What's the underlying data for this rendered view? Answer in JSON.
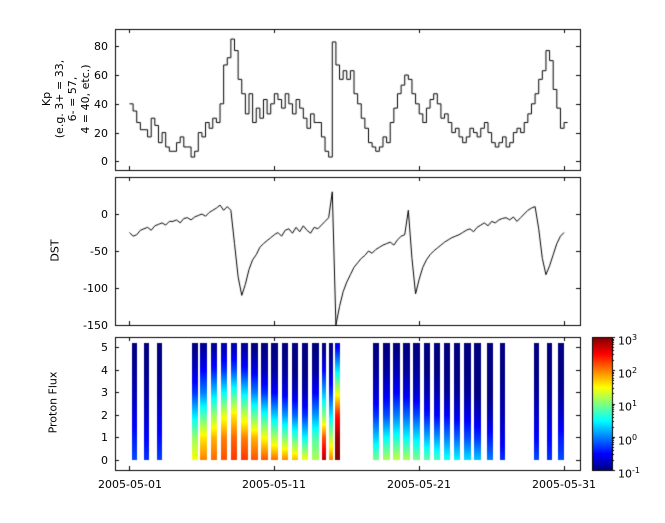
{
  "figure": {
    "background": "#ffffff",
    "frame_color": "#000000"
  },
  "x_axis": {
    "xlim": [
      -1.0,
      31.1
    ],
    "ticks": [
      {
        "day": 0,
        "label": "2005-05-01"
      },
      {
        "day": 10,
        "label": "2005-05-11"
      },
      {
        "day": 20,
        "label": "2005-05-21"
      },
      {
        "day": 30,
        "label": "2005-05-31"
      }
    ]
  },
  "chart_data": [
    {
      "type": "line",
      "name": "kp-index",
      "ylabel_lines": [
        "Kp",
        "(e.g. 3+ = 33,",
        "6- = 57,",
        "4 = 40, etc.)"
      ],
      "ylim": [
        -6,
        92
      ],
      "yticks": [
        0,
        20,
        40,
        60,
        80
      ],
      "line_color": "#000000",
      "step": true,
      "x_start_day": 0,
      "x_step_days": 0.25,
      "values": [
        40,
        35,
        27,
        22,
        22,
        17,
        30,
        25,
        13,
        20,
        10,
        7,
        7,
        13,
        17,
        10,
        10,
        3,
        7,
        20,
        17,
        27,
        23,
        30,
        27,
        40,
        67,
        72,
        85,
        77,
        57,
        47,
        33,
        47,
        27,
        37,
        30,
        43,
        33,
        40,
        47,
        43,
        37,
        47,
        40,
        33,
        43,
        37,
        30,
        23,
        33,
        27,
        27,
        17,
        7,
        3,
        83,
        67,
        57,
        63,
        57,
        63,
        47,
        40,
        30,
        23,
        13,
        10,
        7,
        10,
        17,
        13,
        27,
        37,
        47,
        53,
        60,
        57,
        47,
        40,
        33,
        27,
        37,
        43,
        47,
        40,
        30,
        33,
        27,
        20,
        23,
        17,
        13,
        17,
        23,
        20,
        17,
        23,
        27,
        20,
        13,
        10,
        13,
        17,
        10,
        13,
        20,
        23,
        20,
        27,
        33,
        40,
        47,
        57,
        63,
        77,
        70,
        50,
        37,
        23,
        27
      ]
    },
    {
      "type": "line",
      "name": "dst-index",
      "ylabel": "DST",
      "ylim": [
        -150,
        50
      ],
      "yticks": [
        -150,
        -100,
        -50,
        0
      ],
      "line_color": "#000000",
      "step": false,
      "x_start_day": 0,
      "x_step_days": 0.25,
      "values": [
        -25,
        -30,
        -28,
        -22,
        -20,
        -18,
        -22,
        -16,
        -14,
        -12,
        -15,
        -10,
        -10,
        -8,
        -12,
        -6,
        -5,
        -8,
        -4,
        -2,
        0,
        -3,
        2,
        5,
        8,
        12,
        5,
        10,
        5,
        -40,
        -85,
        -110,
        -95,
        -75,
        -62,
        -55,
        -45,
        -40,
        -36,
        -32,
        -28,
        -25,
        -30,
        -22,
        -20,
        -26,
        -18,
        -24,
        -16,
        -22,
        -26,
        -18,
        -20,
        -15,
        -10,
        -5,
        30,
        -150,
        -125,
        -105,
        -92,
        -82,
        -72,
        -66,
        -60,
        -56,
        -50,
        -53,
        -48,
        -45,
        -42,
        -40,
        -38,
        -42,
        -35,
        -30,
        -28,
        5,
        -60,
        -108,
        -88,
        -72,
        -62,
        -55,
        -50,
        -46,
        -42,
        -38,
        -35,
        -32,
        -30,
        -28,
        -25,
        -22,
        -20,
        -24,
        -18,
        -15,
        -12,
        -16,
        -10,
        -12,
        -8,
        -6,
        -5,
        -8,
        -4,
        -10,
        -5,
        0,
        5,
        8,
        10,
        -20,
        -60,
        -82,
        -70,
        -55,
        -40,
        -30,
        -25
      ]
    },
    {
      "type": "heatmap",
      "name": "proton-flux",
      "ylabel": "Proton Flux",
      "ylim": [
        -0.45,
        5.45
      ],
      "yticks": [
        0,
        1,
        2,
        3,
        4,
        5
      ],
      "bar_y_span": [
        0,
        5.2
      ],
      "colormap": "jet",
      "log_value_range": [
        -1,
        3
      ],
      "columns": [
        {
          "x": 0.2,
          "w": 0.35,
          "v": [
            -0.2,
            -0.4,
            -0.6,
            -0.8,
            -0.9,
            -1
          ]
        },
        {
          "x": 1.0,
          "w": 0.35,
          "v": [
            -0.3,
            -0.5,
            -0.7,
            -0.85,
            -0.95,
            -1
          ]
        },
        {
          "x": 1.9,
          "w": 0.35,
          "v": [
            -0.25,
            -0.45,
            -0.65,
            -0.85,
            -0.95,
            -1
          ]
        },
        {
          "x": 4.3,
          "w": 0.4,
          "v": [
            1.5,
            1.1,
            0.4,
            -0.3,
            -0.7,
            -1
          ]
        },
        {
          "x": 4.9,
          "w": 0.45,
          "v": [
            2.0,
            1.6,
            0.8,
            0.0,
            -0.5,
            -0.9
          ]
        },
        {
          "x": 5.6,
          "w": 0.45,
          "v": [
            2.1,
            1.8,
            1.1,
            0.3,
            -0.4,
            -0.9
          ]
        },
        {
          "x": 6.3,
          "w": 0.45,
          "v": [
            2.2,
            2.0,
            1.4,
            0.5,
            -0.3,
            -0.8
          ]
        },
        {
          "x": 7.0,
          "w": 0.45,
          "v": [
            2.3,
            2.1,
            1.6,
            0.7,
            -0.2,
            -0.8
          ]
        },
        {
          "x": 7.7,
          "w": 0.45,
          "v": [
            2.3,
            2.0,
            1.3,
            0.4,
            -0.4,
            -0.9
          ]
        },
        {
          "x": 8.4,
          "w": 0.45,
          "v": [
            2.2,
            1.8,
            0.9,
            0.0,
            -0.6,
            -1
          ]
        },
        {
          "x": 9.1,
          "w": 0.45,
          "v": [
            2.2,
            1.5,
            0.6,
            -0.3,
            -0.8,
            -1
          ]
        },
        {
          "x": 9.8,
          "w": 0.45,
          "v": [
            2.1,
            1.2,
            0.3,
            -0.5,
            -0.9,
            -1
          ]
        },
        {
          "x": 10.5,
          "w": 0.45,
          "v": [
            2.0,
            1.0,
            0.1,
            -0.6,
            -0.9,
            -1
          ]
        },
        {
          "x": 11.2,
          "w": 0.45,
          "v": [
            1.8,
            0.8,
            -0.1,
            -0.7,
            -1,
            -1
          ]
        },
        {
          "x": 11.9,
          "w": 0.45,
          "v": [
            1.5,
            0.5,
            -0.3,
            -0.8,
            -1,
            -1
          ]
        },
        {
          "x": 12.6,
          "w": 0.45,
          "v": [
            1.2,
            0.8,
            0.1,
            -0.5,
            -0.9,
            -1
          ]
        },
        {
          "x": 13.3,
          "w": 0.3,
          "v": [
            2.8,
            2.2,
            1.0,
            0.2,
            -0.5,
            -1
          ]
        },
        {
          "x": 13.8,
          "w": 0.25,
          "v": [
            2.0,
            1.2,
            0.4,
            -0.3,
            -0.8,
            -1
          ]
        },
        {
          "x": 14.2,
          "w": 0.3,
          "v": [
            3.0,
            2.9,
            2.4,
            1.4,
            0.4,
            -0.5
          ]
        },
        {
          "x": 16.8,
          "w": 0.45,
          "v": [
            1.0,
            0.3,
            -0.3,
            -0.7,
            -0.9,
            -1
          ]
        },
        {
          "x": 17.5,
          "w": 0.45,
          "v": [
            1.2,
            0.5,
            -0.2,
            -0.6,
            -0.9,
            -1
          ]
        },
        {
          "x": 18.2,
          "w": 0.45,
          "v": [
            1.3,
            0.6,
            0.0,
            -0.5,
            -0.8,
            -1
          ]
        },
        {
          "x": 18.9,
          "w": 0.45,
          "v": [
            1.2,
            0.5,
            -0.1,
            -0.6,
            -0.9,
            -1
          ]
        },
        {
          "x": 19.6,
          "w": 0.45,
          "v": [
            1.0,
            0.4,
            -0.2,
            -0.7,
            -0.9,
            -1
          ]
        },
        {
          "x": 20.3,
          "w": 0.45,
          "v": [
            0.9,
            0.2,
            -0.4,
            -0.8,
            -1,
            -1
          ]
        },
        {
          "x": 21.0,
          "w": 0.45,
          "v": [
            0.8,
            0.1,
            -0.5,
            -0.8,
            -1,
            -1
          ]
        },
        {
          "x": 21.7,
          "w": 0.45,
          "v": [
            0.6,
            0.0,
            -0.5,
            -0.9,
            -1,
            -1
          ]
        },
        {
          "x": 22.4,
          "w": 0.45,
          "v": [
            0.5,
            -0.1,
            -0.6,
            -0.9,
            -1,
            -1
          ]
        },
        {
          "x": 23.1,
          "w": 0.45,
          "v": [
            0.4,
            -0.2,
            -0.6,
            -0.9,
            -1,
            -1
          ]
        },
        {
          "x": 23.8,
          "w": 0.45,
          "v": [
            0.3,
            -0.3,
            -0.7,
            -1,
            -1,
            -1
          ]
        },
        {
          "x": 24.7,
          "w": 0.4,
          "v": [
            0.0,
            -0.4,
            -0.8,
            -1,
            -1,
            -1
          ]
        },
        {
          "x": 25.6,
          "w": 0.3,
          "v": [
            -0.3,
            -0.6,
            -0.8,
            -0.9,
            -1,
            -1
          ]
        },
        {
          "x": 27.9,
          "w": 0.4,
          "v": [
            -0.2,
            -0.5,
            -0.7,
            -0.9,
            -1,
            -1
          ]
        },
        {
          "x": 28.8,
          "w": 0.4,
          "v": [
            -0.3,
            -0.5,
            -0.7,
            -0.9,
            -1,
            -1
          ]
        },
        {
          "x": 29.6,
          "w": 0.4,
          "v": [
            -0.2,
            -0.4,
            -0.7,
            -0.9,
            -1,
            -1
          ]
        }
      ],
      "colorbar": {
        "ticks": [
          {
            "base": "10",
            "exp": "3"
          },
          {
            "base": "10",
            "exp": "2"
          },
          {
            "base": "10",
            "exp": "1"
          },
          {
            "base": "10",
            "exp": "0"
          },
          {
            "base": "10",
            "exp": "-1"
          }
        ]
      }
    }
  ]
}
